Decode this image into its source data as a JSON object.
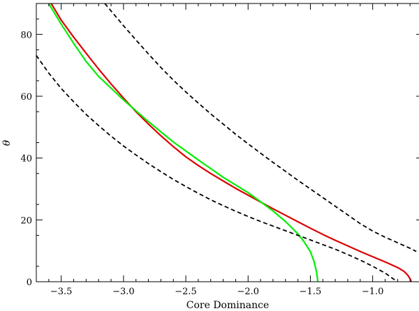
{
  "chart_data": {
    "type": "line",
    "title": "",
    "xlabel": "Core Dominance",
    "ylabel": "θ",
    "xlim": [
      -3.7,
      -0.6
    ],
    "ylim": [
      0,
      90
    ],
    "grid": false,
    "legend": "none",
    "x_ticks": [
      -3.5,
      -3.0,
      -2.5,
      -2.0,
      -1.5,
      -1.0
    ],
    "x_tick_labels": [
      "−3.5",
      "−3.0",
      "−2.5",
      "−2.0",
      "−1.5",
      "−1.0"
    ],
    "y_ticks": [
      0,
      20,
      40,
      60,
      80
    ],
    "y_tick_labels": [
      "0",
      "20",
      "40",
      "60",
      "80"
    ],
    "series": [
      {
        "color": "#dd0000",
        "style": "solid",
        "points": [
          [
            -3.58,
            90
          ],
          [
            -3.5,
            84.6
          ],
          [
            -3.4,
            79.1
          ],
          [
            -3.3,
            73.9
          ],
          [
            -3.2,
            68.8
          ],
          [
            -3.1,
            64.0
          ],
          [
            -3.0,
            59.4
          ],
          [
            -2.9,
            55.0
          ],
          [
            -2.8,
            51.0
          ],
          [
            -2.7,
            47.2
          ],
          [
            -2.6,
            43.7
          ],
          [
            -2.5,
            40.4
          ],
          [
            -2.4,
            37.6
          ],
          [
            -2.3,
            35.0
          ],
          [
            -2.2,
            32.6
          ],
          [
            -2.1,
            30.2
          ],
          [
            -2.0,
            28.0
          ],
          [
            -1.9,
            25.8
          ],
          [
            -1.8,
            23.6
          ],
          [
            -1.7,
            21.5
          ],
          [
            -1.6,
            19.4
          ],
          [
            -1.5,
            17.3
          ],
          [
            -1.4,
            15.3
          ],
          [
            -1.3,
            13.4
          ],
          [
            -1.2,
            11.6
          ],
          [
            -1.1,
            9.8
          ],
          [
            -1.0,
            8.1
          ],
          [
            -0.9,
            6.4
          ],
          [
            -0.8,
            4.6
          ],
          [
            -0.75,
            3.4
          ],
          [
            -0.72,
            2.2
          ],
          [
            -0.7,
            1.0
          ],
          [
            -0.69,
            0
          ]
        ]
      },
      {
        "color": "#00ee00",
        "style": "solid",
        "points": [
          [
            -3.6,
            90
          ],
          [
            -3.5,
            83.3
          ],
          [
            -3.4,
            77.1
          ],
          [
            -3.3,
            71.2
          ],
          [
            -3.2,
            66.4
          ],
          [
            -3.0,
            58.8
          ],
          [
            -2.8,
            51.8
          ],
          [
            -2.6,
            45.2
          ],
          [
            -2.4,
            39.4
          ],
          [
            -2.2,
            33.8
          ],
          [
            -2.0,
            28.8
          ],
          [
            -1.9,
            25.9
          ],
          [
            -1.8,
            22.9
          ],
          [
            -1.7,
            19.5
          ],
          [
            -1.6,
            15.5
          ],
          [
            -1.55,
            12.9
          ],
          [
            -1.5,
            9.7
          ],
          [
            -1.47,
            6.5
          ],
          [
            -1.45,
            3.0
          ],
          [
            -1.44,
            0
          ]
        ]
      },
      {
        "color": "#000000",
        "style": "dashed",
        "points": [
          [
            -3.7,
            73.2
          ],
          [
            -3.6,
            67.5
          ],
          [
            -3.5,
            62.5
          ],
          [
            -3.4,
            58.2
          ],
          [
            -3.3,
            54.1
          ],
          [
            -3.2,
            50.5
          ],
          [
            -3.1,
            47.1
          ],
          [
            -3.0,
            43.9
          ],
          [
            -2.9,
            41.0
          ],
          [
            -2.8,
            38.2
          ],
          [
            -2.7,
            35.6
          ],
          [
            -2.6,
            33.1
          ],
          [
            -2.5,
            30.8
          ],
          [
            -2.4,
            28.6
          ],
          [
            -2.3,
            26.5
          ],
          [
            -2.2,
            24.6
          ],
          [
            -2.1,
            22.8
          ],
          [
            -2.0,
            21.1
          ],
          [
            -1.9,
            19.5
          ],
          [
            -1.8,
            18.0
          ],
          [
            -1.7,
            16.5
          ],
          [
            -1.6,
            15.0
          ],
          [
            -1.5,
            13.5
          ],
          [
            -1.4,
            12.0
          ],
          [
            -1.3,
            10.5
          ],
          [
            -1.2,
            8.8
          ],
          [
            -1.1,
            7.0
          ],
          [
            -1.0,
            5.0
          ],
          [
            -0.9,
            2.8
          ],
          [
            -0.83,
            0.8
          ],
          [
            -0.8,
            0
          ]
        ]
      },
      {
        "color": "#000000",
        "style": "dashed",
        "points": [
          [
            -3.15,
            90
          ],
          [
            -3.0,
            82.8
          ],
          [
            -2.9,
            78.2
          ],
          [
            -2.8,
            73.7
          ],
          [
            -2.7,
            69.3
          ],
          [
            -2.6,
            65.2
          ],
          [
            -2.5,
            61.4
          ],
          [
            -2.4,
            57.8
          ],
          [
            -2.3,
            54.3
          ],
          [
            -2.2,
            51.0
          ],
          [
            -2.1,
            47.7
          ],
          [
            -2.0,
            44.6
          ],
          [
            -1.9,
            41.6
          ],
          [
            -1.8,
            38.6
          ],
          [
            -1.7,
            35.7
          ],
          [
            -1.6,
            32.8
          ],
          [
            -1.5,
            30.0
          ],
          [
            -1.4,
            27.2
          ],
          [
            -1.3,
            24.4
          ],
          [
            -1.2,
            21.6
          ],
          [
            -1.1,
            18.8
          ],
          [
            -1.0,
            16.4
          ],
          [
            -0.9,
            14.4
          ],
          [
            -0.8,
            12.6
          ],
          [
            -0.7,
            10.8
          ],
          [
            -0.65,
            9.8
          ]
        ]
      }
    ]
  }
}
